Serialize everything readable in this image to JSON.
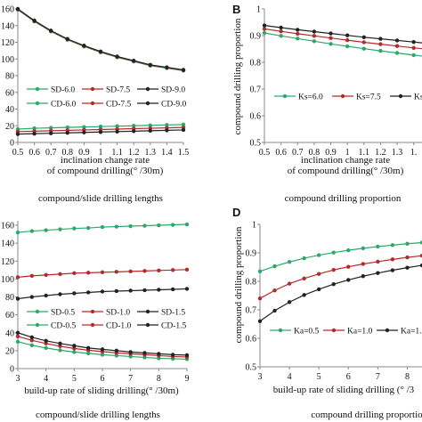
{
  "chart_data": [
    {
      "type": "line",
      "panel": "A",
      "x": [
        0.5,
        0.6,
        0.7,
        0.8,
        0.9,
        1.0,
        1.1,
        1.2,
        1.3,
        1.4,
        1.5
      ],
      "xtick_labels": [
        "0.5",
        "0.6",
        "0.7",
        "0.8",
        "0.9",
        "1",
        "1.1",
        "1.2",
        "1.3",
        "1.4",
        "1.5"
      ],
      "ytick_labels": [
        "0",
        "20",
        "40",
        "60",
        "80",
        "100",
        "120",
        "140",
        "160"
      ],
      "ylim": [
        0,
        160
      ],
      "xlabel_line1": "inclination change rate",
      "xlabel_line2": "of compound drilling(° /30m)",
      "caption": "compound/slide drilling lengths",
      "legend": [
        "SD-6.0",
        "SD-7.5",
        "SD-9.0",
        "CD-6.0",
        "CD-7.5",
        "CD-9.0"
      ],
      "series": [
        {
          "name": "SD-6.0",
          "color": "#2ca86a",
          "values": [
            159,
            145,
            133,
            123,
            115,
            108,
            102,
            97,
            92,
            89,
            86
          ]
        },
        {
          "name": "SD-7.5",
          "color": "#b52a2a",
          "values": [
            159.5,
            145.5,
            133.5,
            123.5,
            115.5,
            108.5,
            102.5,
            97.5,
            92.5,
            89.5,
            86.5
          ]
        },
        {
          "name": "SD-9.0",
          "color": "#222222",
          "values": [
            160,
            146,
            134,
            124,
            116,
            109,
            103,
            98,
            93,
            90,
            87
          ]
        },
        {
          "name": "CD-6.0",
          "color": "#2ca86a",
          "values": [
            16,
            17,
            17.5,
            18,
            18.5,
            19,
            19.5,
            20,
            20.5,
            21,
            21.5
          ]
        },
        {
          "name": "CD-7.5",
          "color": "#b52a2a",
          "values": [
            13,
            13.5,
            14,
            14.5,
            15,
            15.5,
            16,
            16.5,
            17,
            17.5,
            18
          ]
        },
        {
          "name": "CD-9.0",
          "color": "#222222",
          "values": [
            10,
            10.5,
            11,
            11.5,
            12,
            12.5,
            13,
            13.5,
            14,
            14.5,
            15
          ]
        }
      ]
    },
    {
      "type": "line",
      "panel": "B",
      "x": [
        0.5,
        0.6,
        0.7,
        0.8,
        0.9,
        1.0,
        1.1,
        1.2,
        1.3,
        1.4,
        1.5
      ],
      "xtick_labels": [
        "0.5",
        "0.6",
        "0.7",
        "0.8",
        "0.9",
        "1",
        "1.1",
        "1.2",
        "1.3",
        "1."
      ],
      "ytick_labels": [
        "0.5",
        "0.6",
        "0.7",
        "0.8",
        "0.9",
        "1"
      ],
      "ylim": [
        0.5,
        1.0
      ],
      "ylabel": "compound drilling proportion",
      "xlabel_line1": "inclination change rate",
      "xlabel_line2": "of compound drilling(° /30m)",
      "caption": "compound drilling proportion",
      "legend": [
        "Ks=6.0",
        "Ks=7.5",
        "Ks=9.0"
      ],
      "series": [
        {
          "name": "Ks=6.0",
          "color": "#2ca86a",
          "values": [
            0.91,
            0.899,
            0.889,
            0.879,
            0.869,
            0.86,
            0.851,
            0.843,
            0.835,
            0.827,
            0.82
          ]
        },
        {
          "name": "Ks=7.5",
          "color": "#b52a2a",
          "values": [
            0.925,
            0.916,
            0.907,
            0.899,
            0.891,
            0.883,
            0.875,
            0.868,
            0.861,
            0.854,
            0.848
          ]
        },
        {
          "name": "Ks=9.0",
          "color": "#222222",
          "values": [
            0.938,
            0.93,
            0.922,
            0.915,
            0.908,
            0.901,
            0.894,
            0.888,
            0.882,
            0.876,
            0.87
          ]
        }
      ]
    },
    {
      "type": "line",
      "panel": "C",
      "x": [
        3,
        3.5,
        4,
        4.5,
        5,
        5.5,
        6,
        6.5,
        7,
        7.5,
        8,
        8.5,
        9
      ],
      "xtick_labels": [
        "3",
        "4",
        "5",
        "6",
        "7",
        "8",
        "9"
      ],
      "ytick_labels": [
        "0",
        "20",
        "40",
        "60",
        "80",
        "100",
        "120",
        "140",
        "160"
      ],
      "ylim": [
        0,
        165
      ],
      "xlabel": "build-up rate  of sliding drilling(° /30m)",
      "caption": "compound/slide drilling lengths",
      "legend": [
        "SD-0.5",
        "SD-1.0",
        "SD-1.5",
        "CD-0.5",
        "CD-1.0",
        "CD-1.5"
      ],
      "series": [
        {
          "name": "SD-0.5",
          "color": "#2ca86a",
          "values": [
            30,
            26,
            23,
            20.5,
            18.5,
            17,
            15.5,
            14.5,
            13.5,
            12.5,
            11.5,
            11,
            10.5
          ]
        },
        {
          "name": "SD-1.0",
          "color": "#b52a2a",
          "values": [
            36,
            31.5,
            28,
            25,
            22.5,
            20.5,
            19,
            17.5,
            16.5,
            15.5,
            14.5,
            13.5,
            13
          ]
        },
        {
          "name": "SD-1.5",
          "color": "#222222",
          "values": [
            40,
            35,
            31,
            28,
            25.5,
            23,
            21.5,
            20,
            18.5,
            17.5,
            16.5,
            15.5,
            15
          ]
        },
        {
          "name": "CD-0.5",
          "color": "#2ca86a",
          "values": [
            152,
            153.5,
            154.5,
            155.5,
            156.5,
            157,
            158,
            158.5,
            159,
            159.5,
            160,
            160.5,
            161
          ]
        },
        {
          "name": "CD-1.0",
          "color": "#b52a2a",
          "values": [
            102,
            103.5,
            104.5,
            105.5,
            106.5,
            107,
            107.5,
            108,
            108.5,
            109,
            109.5,
            110,
            110.5
          ]
        },
        {
          "name": "CD-1.5",
          "color": "#222222",
          "values": [
            78,
            80,
            81.5,
            83,
            84,
            85,
            86,
            86.5,
            87,
            87.5,
            88,
            88.5,
            89
          ]
        }
      ]
    },
    {
      "type": "line",
      "panel": "D",
      "x": [
        3,
        3.5,
        4,
        4.5,
        5,
        5.5,
        6,
        6.5,
        7,
        7.5,
        8,
        8.5
      ],
      "xtick_labels": [
        "3",
        "4",
        "5",
        "6",
        "7",
        "8"
      ],
      "ytick_labels": [
        "0.5",
        "0.6",
        "0.7",
        "0.8",
        "0.9",
        "1"
      ],
      "ylim": [
        0.5,
        1.0
      ],
      "ylabel": "compound drilling proportion",
      "xlabel": "build-up rate of sliding drilling (° /3",
      "caption": "compound drilling proportio",
      "legend": [
        "Ka=0.5",
        "Ka=1.0",
        "Ka=1.5"
      ],
      "series": [
        {
          "name": "Ka=0.5",
          "color": "#2ca86a",
          "values": [
            0.835,
            0.853,
            0.868,
            0.881,
            0.892,
            0.901,
            0.909,
            0.916,
            0.922,
            0.927,
            0.932,
            0.936
          ]
        },
        {
          "name": "Ka=1.0",
          "color": "#b52a2a",
          "values": [
            0.74,
            0.768,
            0.792,
            0.81,
            0.826,
            0.84,
            0.851,
            0.861,
            0.869,
            0.877,
            0.884,
            0.89
          ]
        },
        {
          "name": "Ka=1.5",
          "color": "#222222",
          "values": [
            0.66,
            0.697,
            0.727,
            0.752,
            0.772,
            0.79,
            0.805,
            0.818,
            0.829,
            0.839,
            0.848,
            0.856
          ]
        }
      ]
    }
  ]
}
